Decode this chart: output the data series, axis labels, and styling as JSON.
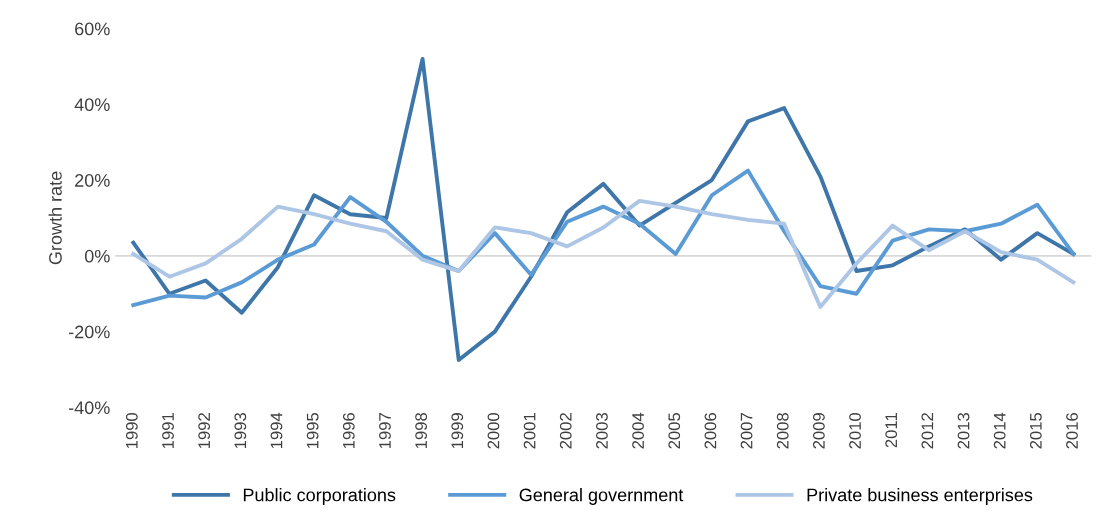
{
  "chart_data": {
    "type": "line",
    "ylabel": "Growth rate",
    "categories": [
      "1990",
      "1991",
      "1992",
      "1993",
      "1994",
      "1995",
      "1996",
      "1997",
      "1998",
      "1999",
      "2000",
      "2001",
      "2002",
      "2003",
      "2004",
      "2005",
      "2006",
      "2007",
      "2008",
      "2009",
      "2010",
      "2011",
      "2012",
      "2013",
      "2014",
      "2015",
      "2016"
    ],
    "series": [
      {
        "name": "Public corporations",
        "color": "#3f76aa",
        "values": [
          3.5,
          -10,
          -6.5,
          -15,
          -3,
          16,
          11,
          10,
          52,
          -27.5,
          -20,
          -5.5,
          11.5,
          19,
          8,
          14,
          20,
          35.5,
          39,
          21,
          -4,
          -2.5,
          2.5,
          7,
          -1,
          6,
          0.5
        ]
      },
      {
        "name": "General government",
        "color": "#5b9bd5",
        "values": [
          -13,
          -10.5,
          -11,
          -7,
          -1,
          3,
          15.5,
          9,
          0,
          -4,
          6,
          -5,
          9,
          13,
          8.5,
          0.5,
          16,
          22.5,
          6.5,
          -8,
          -10,
          4,
          7,
          6.5,
          8.5,
          13.5,
          0.5
        ]
      },
      {
        "name": "Private business enterprises",
        "color": "#adc6e5",
        "values": [
          0.5,
          -5.5,
          -2,
          4.5,
          13,
          11,
          8.5,
          6.5,
          -1,
          -4,
          7.5,
          6,
          2.5,
          7.5,
          14.5,
          13,
          11,
          9.5,
          8.5,
          -13.5,
          -2,
          8,
          1.5,
          6.5,
          1,
          -1,
          -7
        ]
      }
    ],
    "ylim": [
      -40,
      60
    ],
    "yticks": [
      {
        "value": -40,
        "label": "-40%"
      },
      {
        "value": -20,
        "label": "-20%"
      },
      {
        "value": 0,
        "label": "0%"
      },
      {
        "value": 20,
        "label": "20%"
      },
      {
        "value": 40,
        "label": "40%"
      },
      {
        "value": 60,
        "label": "60%"
      }
    ],
    "ref_lines": [
      {
        "axis": "y",
        "value": 0,
        "label": null,
        "color": "#d9d9d9"
      }
    ],
    "grid": false,
    "legend": "bottom"
  }
}
